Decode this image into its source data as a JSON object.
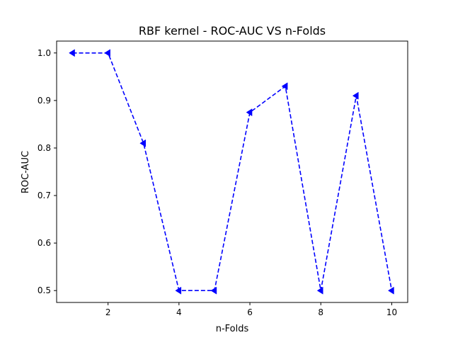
{
  "chart_data": {
    "type": "line",
    "title": "RBF kernel - ROC-AUC VS n-Folds",
    "xlabel": "n-Folds",
    "ylabel": "ROC-AUC",
    "x": [
      1,
      2,
      3,
      4,
      5,
      6,
      7,
      8,
      9,
      10
    ],
    "series": [
      {
        "values": [
          1.0,
          1.0,
          0.81,
          0.5,
          0.5,
          0.875,
          0.93,
          0.5,
          0.91,
          0.5
        ],
        "color": "#0000ff",
        "line_style": "dashed",
        "marker": "triangle-left"
      }
    ],
    "xlim": [
      0.55,
      10.45
    ],
    "ylim": [
      0.475,
      1.025
    ],
    "xticks": [
      2,
      4,
      6,
      8,
      10
    ],
    "yticks": [
      0.5,
      0.6,
      0.7,
      0.8,
      0.9,
      1.0
    ],
    "xtick_labels": [
      "2",
      "4",
      "6",
      "8",
      "10"
    ],
    "ytick_labels": [
      "0.5",
      "0.6",
      "0.7",
      "0.8",
      "0.9",
      "1.0"
    ],
    "grid": false,
    "legend": "none"
  }
}
